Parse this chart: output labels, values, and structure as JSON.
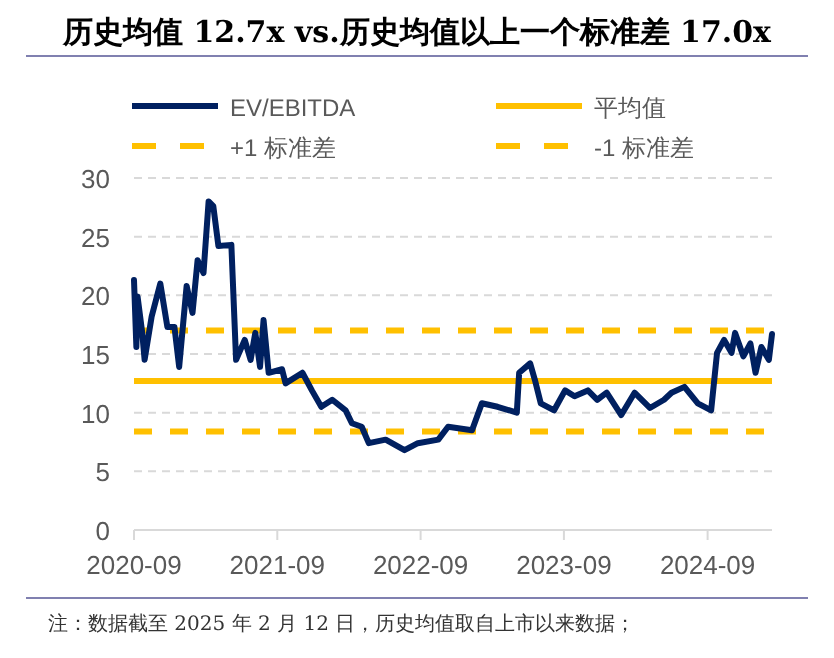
{
  "chart_data": {
    "type": "line",
    "title": "历史均值 12.7x vs.历史均值以上一个标准差 17.0x",
    "x": [
      "2020-09-01",
      "2020-09-07",
      "2020-09-10",
      "2020-09-22",
      "2020-09-28",
      "2020-10-16",
      "2020-11-07",
      "2020-11-25",
      "2020-12-13",
      "2020-12-25",
      "2021-01-13",
      "2021-01-28",
      "2021-02-10",
      "2021-02-25",
      "2021-03-10",
      "2021-03-22",
      "2021-04-04",
      "2021-05-07",
      "2021-05-19",
      "2021-06-10",
      "2021-06-25",
      "2021-07-07",
      "2021-07-19",
      "2021-07-28",
      "2021-08-10",
      "2021-09-13",
      "2021-09-22",
      "2021-11-04",
      "2021-11-28",
      "2021-12-22",
      "2022-01-19",
      "2022-02-22",
      "2022-03-10",
      "2022-04-04",
      "2022-04-22",
      "2022-06-04",
      "2022-07-22",
      "2022-08-25",
      "2022-10-16",
      "2022-11-10",
      "2023-01-10",
      "2023-02-04",
      "2023-03-16",
      "2023-05-04",
      "2023-05-10",
      "2023-06-07",
      "2023-06-19",
      "2023-07-04",
      "2023-08-07",
      "2023-09-04",
      "2023-09-28",
      "2023-11-01",
      "2023-11-25",
      "2023-12-19",
      "2024-01-25",
      "2024-02-28",
      "2024-04-07",
      "2024-05-13",
      "2024-06-01",
      "2024-07-04",
      "2024-08-07",
      "2024-09-10",
      "2024-09-25",
      "2024-10-13",
      "2024-11-01",
      "2024-11-10",
      "2024-12-01",
      "2024-12-19",
      "2025-01-01",
      "2025-01-16",
      "2025-02-04",
      "2025-02-12"
    ],
    "series": [
      {
        "name": "EV/EBITDA",
        "color": "#002060",
        "values": [
          21.3,
          15.6,
          19.9,
          16.8,
          14.5,
          18.2,
          21.0,
          17.3,
          17.3,
          13.9,
          20.8,
          18.5,
          23.0,
          21.9,
          28.0,
          27.6,
          24.2,
          24.3,
          14.5,
          16.2,
          14.5,
          16.8,
          13.9,
          17.9,
          13.4,
          13.7,
          12.5,
          13.4,
          11.9,
          10.5,
          11.1,
          10.2,
          9.1,
          8.8,
          7.4,
          7.7,
          6.8,
          7.4,
          7.7,
          8.8,
          8.5,
          10.8,
          10.5,
          10.0,
          13.4,
          14.2,
          12.8,
          10.8,
          10.2,
          11.9,
          11.4,
          11.9,
          11.1,
          11.7,
          9.8,
          11.7,
          10.4,
          11.1,
          11.7,
          12.2,
          10.8,
          10.2,
          15.1,
          16.2,
          15.1,
          16.8,
          14.8,
          15.9,
          13.4,
          15.6,
          14.5,
          16.7
        ]
      }
    ],
    "ref_lines": [
      {
        "axis": "y",
        "value": 12.7,
        "label": "平均值",
        "color": "#ffc000",
        "line_style": "solid"
      },
      {
        "axis": "y",
        "value": 17.0,
        "label": "+1 标准差",
        "color": "#ffc000",
        "line_style": "dashed"
      },
      {
        "axis": "y",
        "value": 8.4,
        "label": "-1 标准差",
        "color": "#ffc000",
        "line_style": "dashed"
      }
    ],
    "xlim": [
      "2020-09-01",
      "2025-02-12"
    ],
    "xticks": [
      "2020-09",
      "2021-09",
      "2022-09",
      "2023-09",
      "2024-09"
    ],
    "ylim": [
      0,
      30
    ],
    "yticks": [
      0,
      5,
      10,
      15,
      20,
      25,
      30
    ],
    "grid": "y",
    "legend": "top",
    "annotations": [
      "注：数据截至 2025 年 2 月 12 日，历史均值取自上市以来数据；"
    ]
  }
}
